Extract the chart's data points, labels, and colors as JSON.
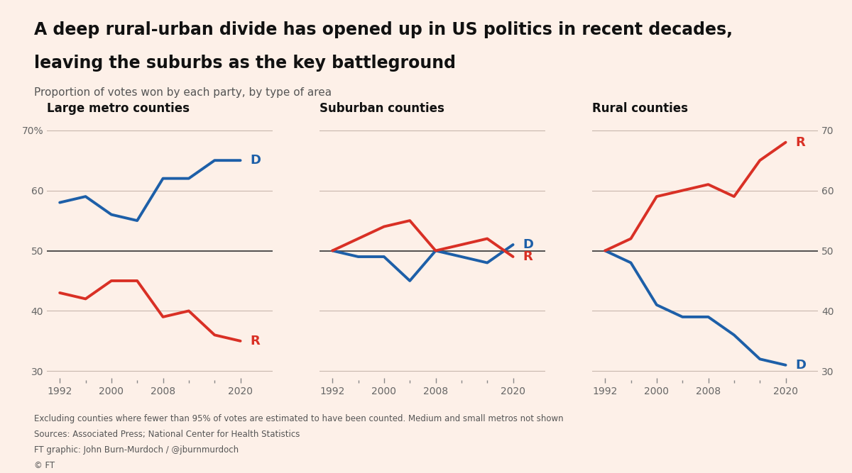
{
  "title_line1": "A deep rural-urban divide has opened up in US politics in recent decades,",
  "title_line2": "leaving the suburbs as the key battleground",
  "subtitle": "Proportion of votes won by each party, by type of area",
  "bg_color": "#fdf0e8",
  "blue_color": "#1d5fa8",
  "red_color": "#d93025",
  "line50_color": "#333333",
  "grid_color": "#c8b8ae",
  "years": [
    1992,
    1996,
    2000,
    2004,
    2008,
    2012,
    2016,
    2020
  ],
  "large_metro_D": [
    58,
    59,
    56,
    55,
    62,
    62,
    65,
    65
  ],
  "large_metro_R": [
    43,
    42,
    45,
    45,
    39,
    40,
    36,
    35
  ],
  "suburban_D": [
    50,
    49,
    49,
    45,
    50,
    49,
    48,
    51
  ],
  "suburban_R": [
    50,
    52,
    54,
    55,
    50,
    51,
    52,
    49
  ],
  "rural_D": [
    50,
    48,
    41,
    39,
    39,
    36,
    32,
    31
  ],
  "rural_R": [
    50,
    52,
    59,
    60,
    61,
    59,
    65,
    68
  ],
  "panel_titles": [
    "Large metro counties",
    "Suburban counties",
    "Rural counties"
  ],
  "ylim": [
    28,
    72
  ],
  "yticks": [
    30,
    40,
    50,
    60,
    70
  ],
  "footnote1": "Excluding counties where fewer than 95% of votes are estimated to have been counted. Medium and small metros not shown",
  "footnote2": "Sources: Associated Press; National Center for Health Statistics",
  "footnote3": "FT graphic: John Burn-Murdoch / @jburnmurdoch",
  "footnote4": "© FT",
  "accent_bar_color": "#1a1a1a"
}
